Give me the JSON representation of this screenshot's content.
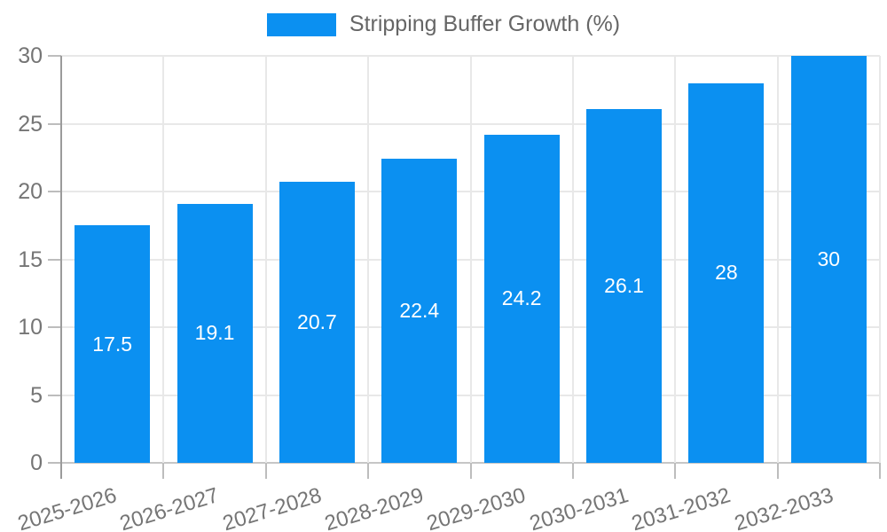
{
  "chart_data": {
    "type": "bar",
    "title": "Stripping Buffer Growth (%)",
    "categories": [
      "2025-2026",
      "2026-2027",
      "2027-2028",
      "2028-2029",
      "2029-2030",
      "2030-2031",
      "2031-2032",
      "2032-2033"
    ],
    "values": [
      17.5,
      19.1,
      20.7,
      22.4,
      24.2,
      26.1,
      28,
      30
    ],
    "value_labels": [
      "17.5",
      "19.1",
      "20.7",
      "22.4",
      "24.2",
      "26.1",
      "28",
      "30"
    ],
    "xlabel": "",
    "ylabel": "",
    "ylim": [
      0,
      30
    ],
    "yticks": [
      0,
      5,
      10,
      15,
      20,
      25,
      30
    ],
    "grid": true,
    "legend_position": "top-center",
    "bar_color": "#0b90f1",
    "value_label_color": "#ffffff",
    "axis_text_color": "#757575",
    "legend_text_color": "#666666"
  }
}
